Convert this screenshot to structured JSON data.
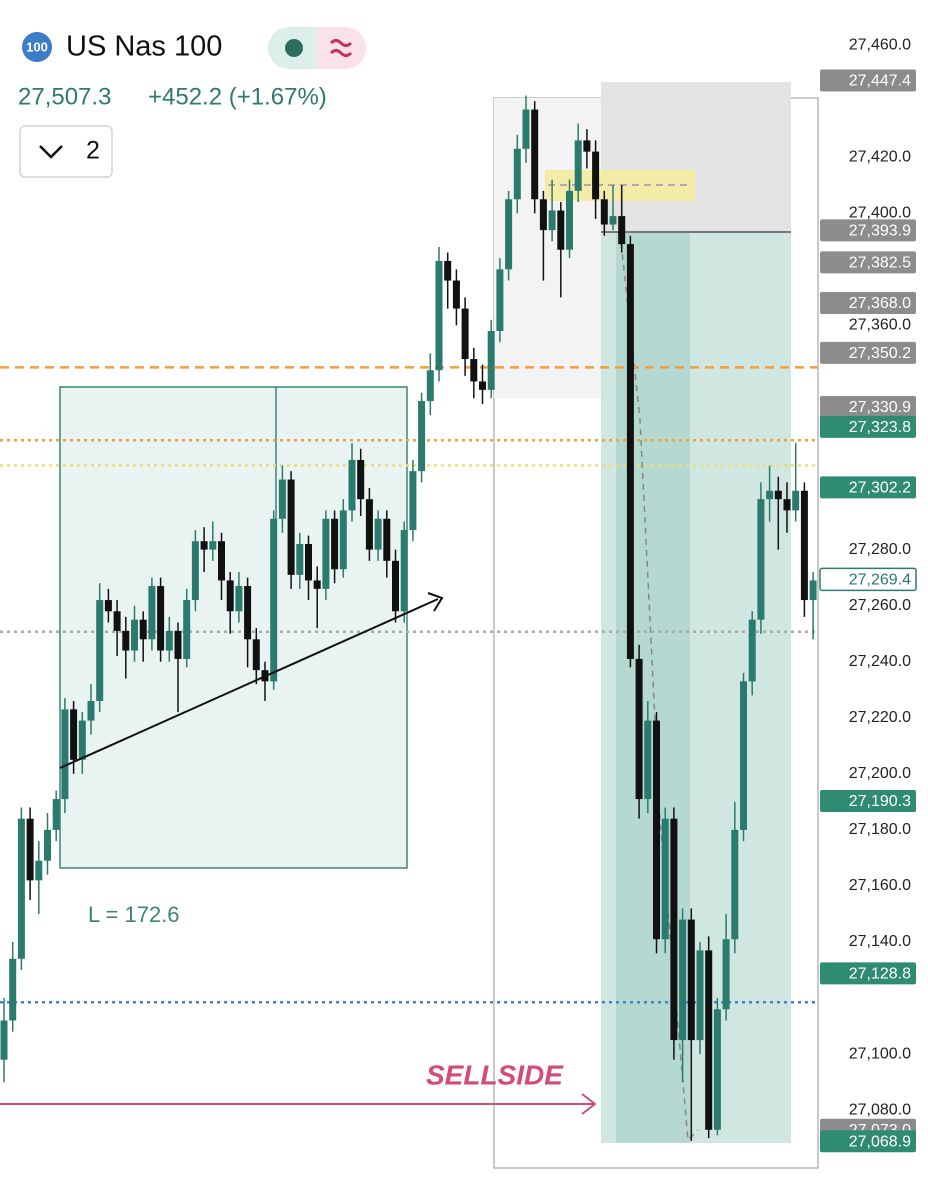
{
  "chart_data": {
    "type": "candlestick",
    "symbol_badge": "100",
    "title": "US Nas 100",
    "price": "27,507.3",
    "change": "+452.2 (+1.67%)",
    "interval_button": "2",
    "annotations": [
      "L = 172.6",
      "SELLSIDE"
    ],
    "ylim": [
      27048.3,
      27476.1
    ],
    "yticks": [
      {
        "value": 27460,
        "label": "27,460.0"
      },
      {
        "value": 27420,
        "label": "27,420.0"
      },
      {
        "value": 27400,
        "label": "27,400.0"
      },
      {
        "value": 27360,
        "label": "27,360.0"
      },
      {
        "value": 27280,
        "label": "27,280.0"
      },
      {
        "value": 27260,
        "label": "27,260.0"
      },
      {
        "value": 27240,
        "label": "27,240.0"
      },
      {
        "value": 27220,
        "label": "27,220.0"
      },
      {
        "value": 27200,
        "label": "27,200.0"
      },
      {
        "value": 27180,
        "label": "27,180.0"
      },
      {
        "value": 27160,
        "label": "27,160.0"
      },
      {
        "value": 27140,
        "label": "27,140.0"
      },
      {
        "value": 27100,
        "label": "27,100.0"
      },
      {
        "value": 27080,
        "label": "27,080.0"
      }
    ],
    "up_color": "#2b7a6e",
    "down_color": "#111111",
    "series": [
      {
        "ohlc": [
          [
            27098,
            27120,
            27090,
            27112
          ],
          [
            27112,
            27140,
            27108,
            27134
          ],
          [
            27134,
            27188,
            27130,
            27184
          ],
          [
            27184,
            27188,
            27155,
            27162
          ],
          [
            27162,
            27176,
            27150,
            27169
          ],
          [
            27169,
            27186,
            27164,
            27180
          ],
          [
            27180,
            27194,
            27176,
            27191
          ],
          [
            27191,
            27227,
            27186,
            27223
          ],
          [
            27223,
            27226,
            27200,
            27205
          ],
          [
            27205,
            27222,
            27200,
            27219
          ],
          [
            27219,
            27232,
            27214,
            27226
          ],
          [
            27226,
            27268,
            27222,
            27262
          ],
          [
            27262,
            27266,
            27254,
            27258
          ],
          [
            27258,
            27262,
            27242,
            27251
          ],
          [
            27251,
            27256,
            27234,
            27244
          ],
          [
            27244,
            27260,
            27240,
            27255
          ],
          [
            27255,
            27258,
            27240,
            27248
          ],
          [
            27248,
            27270,
            27244,
            27267
          ],
          [
            27267,
            27270,
            27240,
            27244
          ],
          [
            27244,
            27256,
            27240,
            27251
          ],
          [
            27251,
            27254,
            27222,
            27241
          ],
          [
            27241,
            27266,
            27238,
            27262
          ],
          [
            27262,
            27287,
            27258,
            27283
          ],
          [
            27283,
            27288,
            27272,
            27280
          ],
          [
            27280,
            27290,
            27276,
            27283
          ],
          [
            27283,
            27286,
            27262,
            27269
          ],
          [
            27269,
            27272,
            27250,
            27258
          ],
          [
            27258,
            27272,
            27254,
            27267
          ],
          [
            27267,
            27270,
            27238,
            27248
          ],
          [
            27248,
            27252,
            27232,
            27237
          ],
          [
            27237,
            27240,
            27226,
            27233
          ],
          [
            27233,
            27294,
            27230,
            27291
          ],
          [
            27291,
            27310,
            27286,
            27305
          ],
          [
            27305,
            27308,
            27266,
            27271
          ],
          [
            27271,
            27286,
            27266,
            27282
          ],
          [
            27282,
            27285,
            27262,
            27269
          ],
          [
            27269,
            27274,
            27252,
            27266
          ],
          [
            27266,
            27294,
            27262,
            27291
          ],
          [
            27291,
            27294,
            27268,
            27273
          ],
          [
            27273,
            27298,
            27270,
            27294
          ],
          [
            27294,
            27318,
            27290,
            27312
          ],
          [
            27312,
            27316,
            27292,
            27298
          ],
          [
            27298,
            27302,
            27276,
            27280
          ],
          [
            27280,
            27294,
            27276,
            27291
          ],
          [
            27291,
            27294,
            27270,
            27276
          ],
          [
            27276,
            27280,
            27254,
            27258
          ],
          [
            27258,
            27290,
            27254,
            27287
          ],
          [
            27287,
            27312,
            27283,
            27308
          ],
          [
            27308,
            27336,
            27304,
            27333
          ],
          [
            27333,
            27350,
            27328,
            27344
          ],
          [
            27344,
            27388,
            27340,
            27383
          ],
          [
            27383,
            27386,
            27366,
            27376
          ],
          [
            27376,
            27380,
            27360,
            27366
          ],
          [
            27366,
            27370,
            27342,
            27348
          ],
          [
            27348,
            27352,
            27334,
            27340
          ],
          [
            27340,
            27346,
            27332,
            27337
          ],
          [
            27337,
            27362,
            27334,
            27358
          ],
          [
            27358,
            27384,
            27354,
            27380
          ],
          [
            27380,
            27408,
            27376,
            27405
          ],
          [
            27405,
            27428,
            27400,
            27423
          ],
          [
            27423,
            27442,
            27418,
            27437
          ],
          [
            27437,
            27440,
            27400,
            27405
          ],
          [
            27405,
            27408,
            27376,
            27394
          ],
          [
            27394,
            27412,
            27390,
            27401
          ],
          [
            27401,
            27404,
            27370,
            27387
          ],
          [
            27387,
            27412,
            27384,
            27408
          ],
          [
            27408,
            27432,
            27404,
            27426
          ],
          [
            27426,
            27430,
            27416,
            27422
          ],
          [
            27422,
            27426,
            27398,
            27405
          ],
          [
            27405,
            27408,
            27392,
            27396
          ],
          [
            27396,
            27410,
            27394,
            27399
          ],
          [
            27399,
            27410,
            27386,
            27389
          ],
          [
            27389,
            27392,
            27238,
            27241
          ],
          [
            27241,
            27246,
            27184,
            27191
          ],
          [
            27191,
            27226,
            27186,
            27219
          ],
          [
            27219,
            27222,
            27136,
            27141
          ],
          [
            27141,
            27188,
            27136,
            27184
          ],
          [
            27184,
            27188,
            27098,
            27105
          ],
          [
            27105,
            27152,
            27090,
            27148
          ],
          [
            27148,
            27152,
            27069,
            27105
          ],
          [
            27105,
            27140,
            27100,
            27137
          ],
          [
            27137,
            27142,
            27070,
            27073
          ],
          [
            27073,
            27120,
            27071,
            27116
          ],
          [
            27116,
            27150,
            27112,
            27141
          ],
          [
            27141,
            27190,
            27136,
            27180
          ],
          [
            27180,
            27236,
            27176,
            27233
          ],
          [
            27233,
            27258,
            27228,
            27255
          ],
          [
            27255,
            27304,
            27250,
            27298
          ],
          [
            27298,
            27310,
            27290,
            27301
          ],
          [
            27301,
            27306,
            27280,
            27298
          ],
          [
            27298,
            27304,
            27286,
            27294
          ],
          [
            27294,
            27318,
            27290,
            27301
          ],
          [
            27301,
            27304,
            27256,
            27262
          ],
          [
            27262,
            27272,
            27248,
            27269
          ]
        ]
      }
    ],
    "levels": [
      {
        "value": 27345,
        "color": "#f0a040",
        "dash": "9 6"
      },
      {
        "value": 27319,
        "color": "#f0a040",
        "dash": "3 4"
      },
      {
        "value": 27310,
        "color": "#e8e070",
        "dash": "3 4"
      },
      {
        "value": 27250.7,
        "color": "#aaaaaa",
        "dash": "3 4"
      },
      {
        "value": 27118.5,
        "color": "#4a80d0",
        "dash": "3 4"
      }
    ],
    "price_labels": [
      {
        "value": 27447.4,
        "label": "27,447.4",
        "color": "#8c8c8c"
      },
      {
        "value": 27393.9,
        "label": "27,393.9",
        "color": "#8c8c8c"
      },
      {
        "value": 27382.5,
        "label": "27,382.5",
        "color": "#8c8c8c"
      },
      {
        "value": 27368.0,
        "label": "27,368.0",
        "color": "#8c8c8c"
      },
      {
        "value": 27350.2,
        "label": "27,350.2",
        "color": "#8c8c8c"
      },
      {
        "value": 27330.9,
        "label": "27,330.9",
        "color": "#8c8c8c"
      },
      {
        "value": 27323.8,
        "label": "27,323.8",
        "color": "#2f8c72"
      },
      {
        "value": 27302.2,
        "label": "27,302.2",
        "color": "#2f8c72"
      },
      {
        "value": 27269.4,
        "label": "27,269.4",
        "color": "#ffffff"
      },
      {
        "value": 27190.3,
        "label": "27,190.3",
        "color": "#2f8c72"
      },
      {
        "value": 27128.8,
        "label": "27,128.8",
        "color": "#2f8c72"
      },
      {
        "value": 27073.0,
        "label": "27,073.0",
        "color": "#8c8c8c"
      },
      {
        "value": 27068.9,
        "label": "27,068.9",
        "color": "#2f8c72"
      }
    ]
  }
}
